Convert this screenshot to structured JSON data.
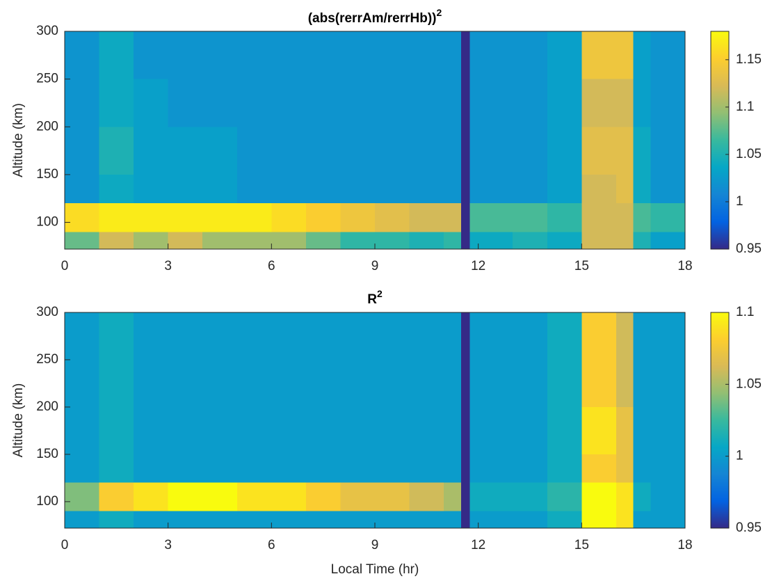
{
  "chart_data": [
    {
      "type": "heatmap",
      "title": "(abs(rerrAm/rerrHb))",
      "title_superscript": "2",
      "ylabel": "Altitude (km)",
      "xbins": [
        0,
        1,
        2,
        3,
        4,
        5,
        6,
        7,
        8,
        9,
        10,
        11,
        11.5,
        11.75,
        13,
        14,
        15,
        16,
        16.5,
        17,
        18
      ],
      "ybins": [
        72,
        90,
        120,
        150,
        200,
        250,
        300
      ],
      "z": [
        [
          1.08,
          1.12,
          1.1,
          1.12,
          1.1,
          1.1,
          1.1,
          1.08,
          1.06,
          1.06,
          1.05,
          1.06,
          0.95,
          1.04,
          1.05,
          1.04,
          1.12,
          1.12,
          1.05,
          1.03
        ],
        [
          1.16,
          1.17,
          1.17,
          1.17,
          1.17,
          1.17,
          1.16,
          1.15,
          1.14,
          1.13,
          1.12,
          1.12,
          0.95,
          1.07,
          1.07,
          1.06,
          1.12,
          1.12,
          1.07,
          1.06
        ],
        [
          1.02,
          1.04,
          1.03,
          1.03,
          1.03,
          1.02,
          1.02,
          1.02,
          1.02,
          1.02,
          1.02,
          1.02,
          0.95,
          1.02,
          1.02,
          1.03,
          1.12,
          1.13,
          1.04,
          1.02
        ],
        [
          1.02,
          1.05,
          1.03,
          1.03,
          1.03,
          1.02,
          1.02,
          1.02,
          1.02,
          1.02,
          1.02,
          1.02,
          0.95,
          1.02,
          1.02,
          1.03,
          1.13,
          1.13,
          1.04,
          1.02
        ],
        [
          1.02,
          1.04,
          1.03,
          1.02,
          1.02,
          1.02,
          1.02,
          1.02,
          1.02,
          1.02,
          1.02,
          1.02,
          0.95,
          1.02,
          1.02,
          1.03,
          1.12,
          1.12,
          1.03,
          1.02
        ],
        [
          1.02,
          1.04,
          1.02,
          1.02,
          1.02,
          1.02,
          1.02,
          1.02,
          1.02,
          1.02,
          1.02,
          1.02,
          0.95,
          1.02,
          1.02,
          1.03,
          1.14,
          1.14,
          1.03,
          1.02
        ]
      ],
      "xlim": [
        0,
        18
      ],
      "xticks": [
        0,
        3,
        6,
        9,
        12,
        15,
        18
      ],
      "ylim": [
        72,
        300
      ],
      "yticks": [
        100,
        150,
        200,
        250,
        300
      ],
      "clim": [
        0.95,
        1.18
      ],
      "cticks": [
        0.95,
        1,
        1.05,
        1.1,
        1.15
      ],
      "colormap": [
        "#352a87",
        "#0363e1",
        "#1485d4",
        "#06a7c6",
        "#38b99e",
        "#92bf73",
        "#d9ba56",
        "#fcce2e",
        "#f9fb0e"
      ]
    },
    {
      "type": "heatmap",
      "title": "R",
      "title_superscript": "2",
      "ylabel": "Altitude (km)",
      "xlabel": "Local Time (hr)",
      "xbins": [
        0,
        1,
        2,
        3,
        4,
        5,
        6,
        7,
        8,
        9,
        10,
        11,
        11.5,
        11.75,
        13,
        14,
        15,
        16,
        16.5,
        17,
        18
      ],
      "ybins": [
        72,
        90,
        120,
        150,
        200,
        250,
        300
      ],
      "z": [
        [
          1.0,
          1.01,
          1.0,
          1.0,
          1.0,
          1.0,
          1.0,
          1.0,
          1.0,
          1.0,
          1.0,
          1.0,
          0.95,
          1.0,
          1.0,
          1.01,
          1.1,
          1.09,
          1.0,
          1.0
        ],
        [
          1.04,
          1.08,
          1.09,
          1.1,
          1.1,
          1.09,
          1.09,
          1.08,
          1.07,
          1.07,
          1.06,
          1.05,
          0.95,
          1.01,
          1.01,
          1.02,
          1.1,
          1.09,
          1.01,
          1.0
        ],
        [
          1.0,
          1.01,
          1.0,
          1.0,
          1.0,
          1.0,
          1.0,
          1.0,
          1.0,
          1.0,
          1.0,
          1.0,
          0.95,
          1.0,
          1.0,
          1.01,
          1.08,
          1.07,
          1.0,
          1.0
        ],
        [
          1.0,
          1.01,
          1.0,
          1.0,
          1.0,
          1.0,
          1.0,
          1.0,
          1.0,
          1.0,
          1.0,
          1.0,
          0.95,
          1.0,
          1.0,
          1.01,
          1.09,
          1.07,
          1.0,
          1.0
        ],
        [
          1.0,
          1.01,
          1.0,
          1.0,
          1.0,
          1.0,
          1.0,
          1.0,
          1.0,
          1.0,
          1.0,
          1.0,
          0.95,
          1.0,
          1.0,
          1.01,
          1.08,
          1.06,
          1.0,
          1.0
        ],
        [
          1.0,
          1.01,
          1.0,
          1.0,
          1.0,
          1.0,
          1.0,
          1.0,
          1.0,
          1.0,
          1.0,
          1.0,
          0.95,
          1.0,
          1.0,
          1.01,
          1.08,
          1.06,
          1.0,
          1.0
        ]
      ],
      "xlim": [
        0,
        18
      ],
      "xticks": [
        0,
        3,
        6,
        9,
        12,
        15,
        18
      ],
      "ylim": [
        72,
        300
      ],
      "yticks": [
        100,
        150,
        200,
        250,
        300
      ],
      "clim": [
        0.95,
        1.1
      ],
      "cticks": [
        0.95,
        1,
        1.05,
        1.1
      ],
      "colormap": [
        "#352a87",
        "#0363e1",
        "#1485d4",
        "#06a7c6",
        "#38b99e",
        "#92bf73",
        "#d9ba56",
        "#fcce2e",
        "#f9fb0e"
      ]
    }
  ]
}
